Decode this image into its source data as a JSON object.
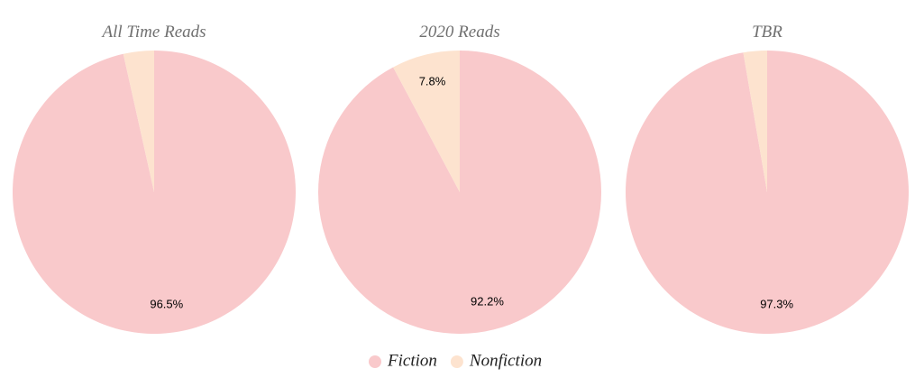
{
  "chart_data": [
    {
      "type": "pie",
      "title": "All Time Reads",
      "categories": [
        "Fiction",
        "Nonfiction"
      ],
      "values": [
        96.5,
        3.5
      ],
      "value_labels": [
        "96.5%",
        null
      ],
      "colors": [
        "#f9c9cb",
        "#fde3cf"
      ]
    },
    {
      "type": "pie",
      "title": "2020 Reads",
      "categories": [
        "Fiction",
        "Nonfiction"
      ],
      "values": [
        92.2,
        7.8
      ],
      "value_labels": [
        "92.2%",
        "7.8%"
      ],
      "colors": [
        "#f9c9cb",
        "#fde3cf"
      ]
    },
    {
      "type": "pie",
      "title": "TBR",
      "categories": [
        "Fiction",
        "Nonfiction"
      ],
      "values": [
        97.3,
        2.7
      ],
      "value_labels": [
        "97.3%",
        null
      ],
      "colors": [
        "#f9c9cb",
        "#fde3cf"
      ]
    }
  ]
}
